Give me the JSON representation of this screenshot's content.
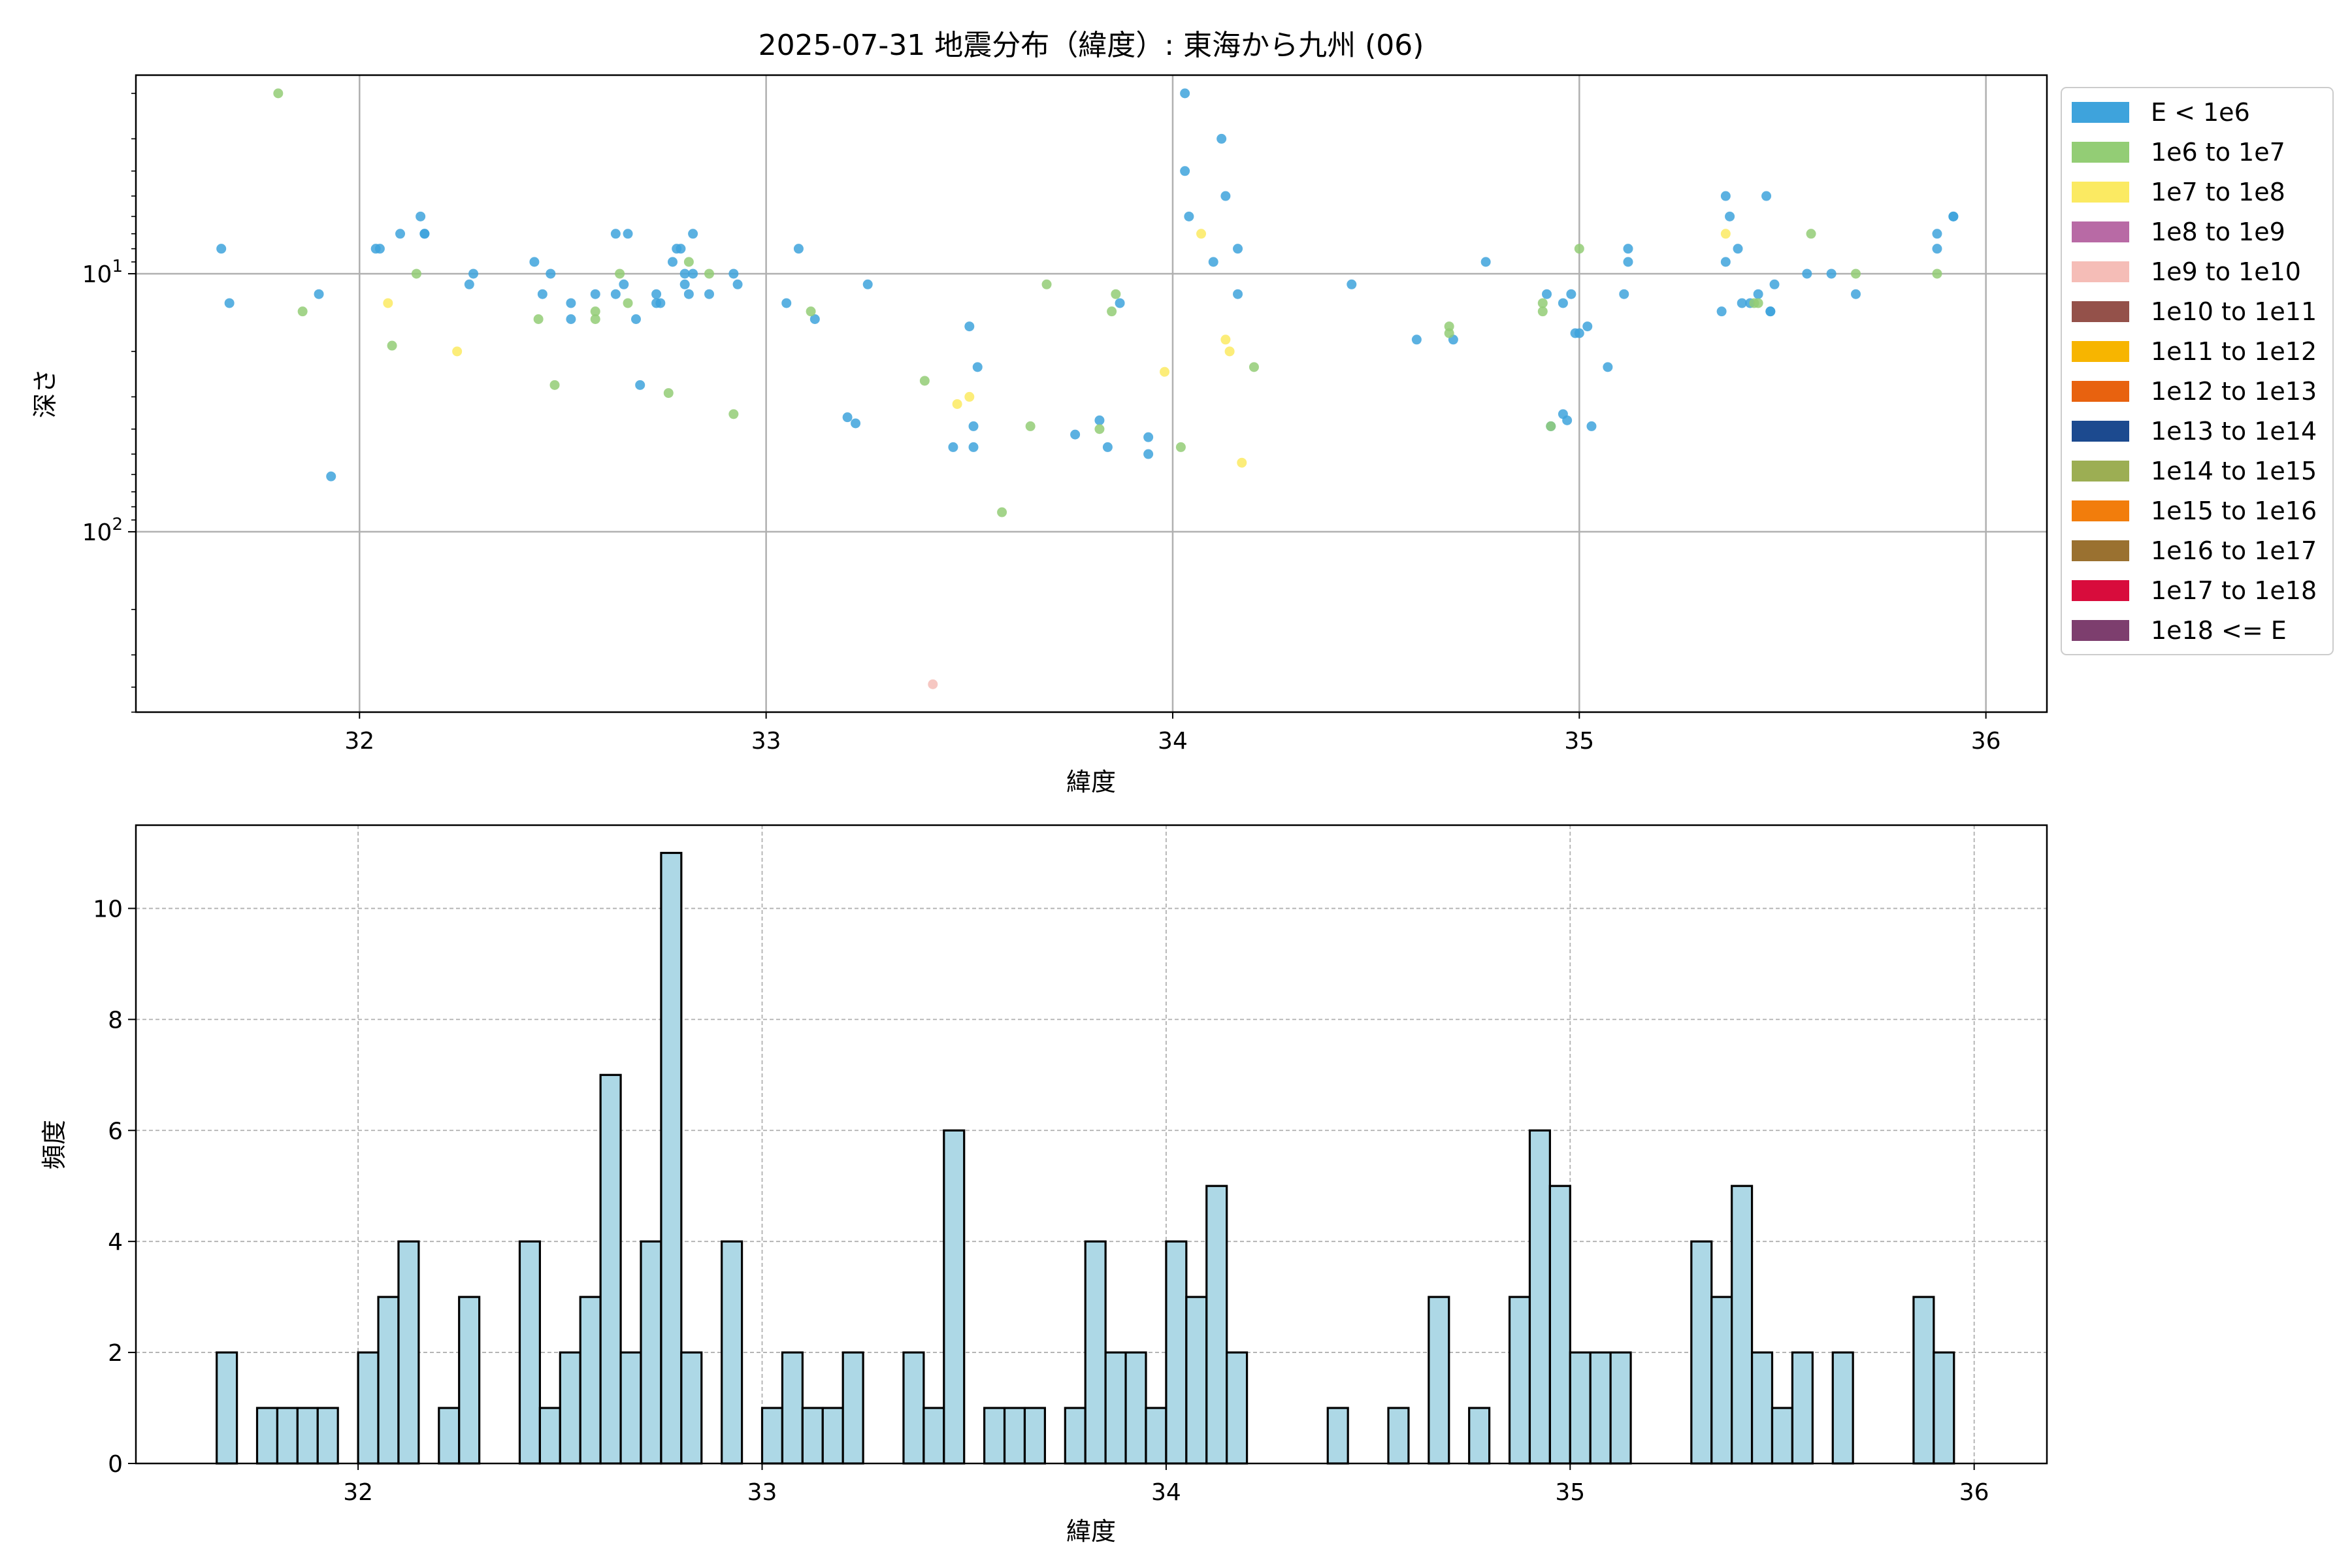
{
  "chart_data": [
    {
      "type": "scatter",
      "title": "2025-07-31 地震分布（緯度）: 東海から九州 (06)",
      "xlabel": "緯度",
      "ylabel": "深さ",
      "xlim": [
        31.45,
        36.15
      ],
      "ylim": [
        500,
        1.7
      ],
      "yscale": "log",
      "y_inverted": true,
      "xticks": [
        32,
        33,
        34,
        35,
        36
      ],
      "yticks": [
        {
          "value": 10,
          "base": "10",
          "exp": "1"
        },
        {
          "value": 100,
          "base": "10",
          "exp": "2"
        }
      ],
      "grid": true,
      "legend_position": "outside right",
      "legend": [
        {
          "label": "E < 1e6",
          "color": "#3ea3dc"
        },
        {
          "label": "1e6 to 1e7",
          "color": "#93cd75"
        },
        {
          "label": "1e7 to 1e8",
          "color": "#fbea62"
        },
        {
          "label": "1e8 to 1e9",
          "color": "#b86aa5"
        },
        {
          "label": "1e9 to 1e10",
          "color": "#f5bdb7"
        },
        {
          "label": "1e10 to 1e11",
          "color": "#94514a"
        },
        {
          "label": "1e11 to 1e12",
          "color": "#f7b500"
        },
        {
          "label": "1e12 to 1e13",
          "color": "#e8620f"
        },
        {
          "label": "1e13 to 1e14",
          "color": "#1c4a8f"
        },
        {
          "label": "1e14 to 1e15",
          "color": "#9cae53"
        },
        {
          "label": "1e15 to 1e16",
          "color": "#f27d0c"
        },
        {
          "label": "1e16 to 1e17",
          "color": "#9a7130"
        },
        {
          "label": "1e17 to 1e18",
          "color": "#d80c3c"
        },
        {
          "label": "1e18 <= E",
          "color": "#7d3e6e"
        }
      ],
      "series": [
        {
          "name": "E < 1e6",
          "color": "#3ea3dc",
          "points": [
            [
              31.66,
              8
            ],
            [
              31.68,
              13
            ],
            [
              31.9,
              12
            ],
            [
              31.93,
              61
            ],
            [
              32.04,
              8
            ],
            [
              32.05,
              8
            ],
            [
              32.1,
              7
            ],
            [
              32.15,
              6
            ],
            [
              32.16,
              7
            ],
            [
              32.16,
              7
            ],
            [
              32.27,
              11
            ],
            [
              32.28,
              10
            ],
            [
              32.43,
              9
            ],
            [
              32.45,
              12
            ],
            [
              32.47,
              10
            ],
            [
              32.52,
              13
            ],
            [
              32.52,
              15
            ],
            [
              32.58,
              12
            ],
            [
              32.63,
              7
            ],
            [
              32.63,
              12
            ],
            [
              32.65,
              11
            ],
            [
              32.66,
              7
            ],
            [
              32.68,
              15
            ],
            [
              32.69,
              27
            ],
            [
              32.73,
              12
            ],
            [
              32.73,
              13
            ],
            [
              32.74,
              13
            ],
            [
              32.77,
              9
            ],
            [
              32.78,
              8
            ],
            [
              32.79,
              8
            ],
            [
              32.8,
              10
            ],
            [
              32.8,
              11
            ],
            [
              32.81,
              12
            ],
            [
              32.82,
              7
            ],
            [
              32.82,
              10
            ],
            [
              32.86,
              12
            ],
            [
              32.92,
              10
            ],
            [
              32.93,
              11
            ],
            [
              33.05,
              13
            ],
            [
              33.08,
              8
            ],
            [
              33.12,
              15
            ],
            [
              33.2,
              36
            ],
            [
              33.22,
              38
            ],
            [
              33.25,
              11
            ],
            [
              33.46,
              47
            ],
            [
              33.5,
              16
            ],
            [
              33.51,
              39
            ],
            [
              33.51,
              47
            ],
            [
              33.52,
              23
            ],
            [
              33.76,
              42
            ],
            [
              33.82,
              37
            ],
            [
              33.84,
              47
            ],
            [
              33.87,
              13
            ],
            [
              33.94,
              43
            ],
            [
              33.94,
              50
            ],
            [
              34.03,
              4
            ],
            [
              34.03,
              2
            ],
            [
              34.04,
              6
            ],
            [
              34.1,
              9
            ],
            [
              34.12,
              3
            ],
            [
              34.13,
              5
            ],
            [
              34.16,
              8
            ],
            [
              34.16,
              12
            ],
            [
              34.44,
              11
            ],
            [
              34.6,
              18
            ],
            [
              34.69,
              18
            ],
            [
              34.77,
              9
            ],
            [
              34.92,
              12
            ],
            [
              34.93,
              39
            ],
            [
              34.96,
              35
            ],
            [
              34.96,
              13
            ],
            [
              34.97,
              37
            ],
            [
              34.98,
              12
            ],
            [
              34.99,
              17
            ],
            [
              35.0,
              17
            ],
            [
              35.02,
              16
            ],
            [
              35.03,
              39
            ],
            [
              35.07,
              23
            ],
            [
              35.11,
              12
            ],
            [
              35.12,
              9
            ],
            [
              35.12,
              8
            ],
            [
              35.35,
              14
            ],
            [
              35.36,
              9
            ],
            [
              35.36,
              5
            ],
            [
              35.37,
              6
            ],
            [
              35.39,
              8
            ],
            [
              35.4,
              13
            ],
            [
              35.42,
              13
            ],
            [
              35.44,
              12
            ],
            [
              35.46,
              5
            ],
            [
              35.47,
              14
            ],
            [
              35.47,
              14
            ],
            [
              35.48,
              11
            ],
            [
              35.56,
              10
            ],
            [
              35.62,
              10
            ],
            [
              35.68,
              12
            ],
            [
              35.88,
              8
            ],
            [
              35.88,
              7
            ],
            [
              35.92,
              6
            ],
            [
              35.92,
              6
            ]
          ]
        },
        {
          "name": "1e6 to 1e7",
          "color": "#93cd75",
          "points": [
            [
              31.8,
              2
            ],
            [
              31.86,
              14
            ],
            [
              32.08,
              19
            ],
            [
              32.14,
              10
            ],
            [
              32.44,
              15
            ],
            [
              32.48,
              27
            ],
            [
              32.58,
              14
            ],
            [
              32.58,
              15
            ],
            [
              32.64,
              10
            ],
            [
              32.66,
              13
            ],
            [
              32.76,
              29
            ],
            [
              32.81,
              9
            ],
            [
              32.86,
              10
            ],
            [
              32.92,
              35
            ],
            [
              33.11,
              14
            ],
            [
              33.39,
              26
            ],
            [
              33.65,
              39
            ],
            [
              33.69,
              11
            ],
            [
              33.58,
              84
            ],
            [
              33.82,
              40
            ],
            [
              33.85,
              14
            ],
            [
              33.86,
              12
            ],
            [
              34.02,
              47
            ],
            [
              34.2,
              23
            ],
            [
              34.68,
              16
            ],
            [
              34.68,
              17
            ],
            [
              34.91,
              13
            ],
            [
              34.91,
              14
            ],
            [
              34.93,
              39
            ],
            [
              35.0,
              8
            ],
            [
              35.43,
              13
            ],
            [
              35.44,
              13
            ],
            [
              35.57,
              7
            ],
            [
              35.68,
              10
            ],
            [
              35.88,
              10
            ]
          ]
        },
        {
          "name": "1e7 to 1e8",
          "color": "#fbea62",
          "points": [
            [
              32.07,
              13
            ],
            [
              32.24,
              20
            ],
            [
              33.47,
              32
            ],
            [
              33.5,
              30
            ],
            [
              33.98,
              24
            ],
            [
              34.07,
              7
            ],
            [
              34.13,
              18
            ],
            [
              34.14,
              20
            ],
            [
              34.17,
              54
            ],
            [
              35.36,
              7
            ]
          ]
        },
        {
          "name": "1e9 to 1e10",
          "color": "#f5bdb7",
          "points": [
            [
              33.41,
              390
            ]
          ]
        }
      ]
    },
    {
      "type": "bar",
      "xlabel": "緯度",
      "ylabel": "頻度",
      "xlim": [
        31.45,
        36.18
      ],
      "ylim": [
        0,
        11.5
      ],
      "xticks": [
        32,
        33,
        34,
        35,
        36
      ],
      "yticks": [
        0,
        2,
        4,
        6,
        8,
        10
      ],
      "grid": true,
      "bin_width": 0.05,
      "fill_color": "#add8e6",
      "edge_color": "#000000",
      "bins": [
        [
          31.65,
          2
        ],
        [
          31.75,
          1
        ],
        [
          31.8,
          1
        ],
        [
          31.85,
          1
        ],
        [
          31.9,
          1
        ],
        [
          32.0,
          2
        ],
        [
          32.05,
          3
        ],
        [
          32.1,
          4
        ],
        [
          32.2,
          1
        ],
        [
          32.25,
          3
        ],
        [
          32.4,
          4
        ],
        [
          32.45,
          1
        ],
        [
          32.5,
          2
        ],
        [
          32.55,
          3
        ],
        [
          32.6,
          7
        ],
        [
          32.65,
          2
        ],
        [
          32.7,
          4
        ],
        [
          32.75,
          11
        ],
        [
          32.8,
          2
        ],
        [
          32.9,
          4
        ],
        [
          33.0,
          1
        ],
        [
          33.05,
          2
        ],
        [
          33.1,
          1
        ],
        [
          33.15,
          1
        ],
        [
          33.2,
          2
        ],
        [
          33.35,
          2
        ],
        [
          33.4,
          1
        ],
        [
          33.45,
          6
        ],
        [
          33.55,
          1
        ],
        [
          33.6,
          1
        ],
        [
          33.65,
          1
        ],
        [
          33.75,
          1
        ],
        [
          33.8,
          4
        ],
        [
          33.85,
          2
        ],
        [
          33.9,
          2
        ],
        [
          33.95,
          1
        ],
        [
          34.0,
          4
        ],
        [
          34.05,
          3
        ],
        [
          34.1,
          5
        ],
        [
          34.15,
          2
        ],
        [
          34.4,
          1
        ],
        [
          34.55,
          1
        ],
        [
          34.65,
          3
        ],
        [
          34.75,
          1
        ],
        [
          34.85,
          3
        ],
        [
          34.9,
          6
        ],
        [
          34.95,
          5
        ],
        [
          35.0,
          2
        ],
        [
          35.05,
          2
        ],
        [
          35.1,
          2
        ],
        [
          35.3,
          4
        ],
        [
          35.35,
          3
        ],
        [
          35.4,
          5
        ],
        [
          35.45,
          2
        ],
        [
          35.5,
          1
        ],
        [
          35.55,
          2
        ],
        [
          35.65,
          2
        ],
        [
          35.85,
          3
        ],
        [
          35.9,
          2
        ]
      ]
    }
  ]
}
